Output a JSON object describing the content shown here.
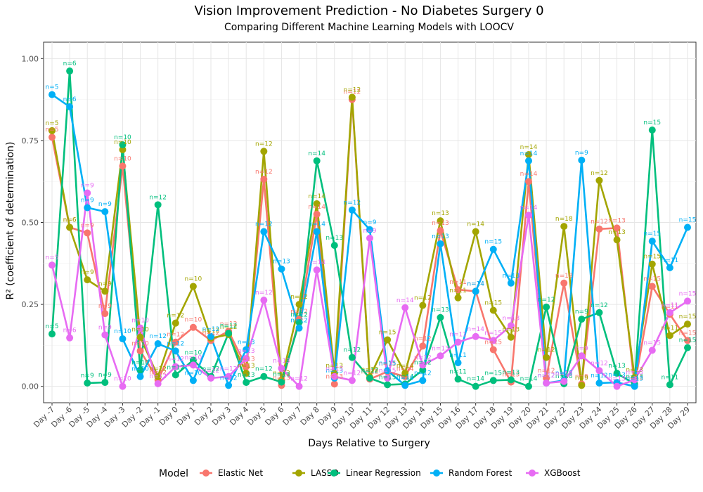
{
  "chart_data": {
    "type": "line",
    "title": "Vision Improvement Prediction - No Diabetes Surgery 0",
    "subtitle": "Comparing Different Machine Learning Models with LOOCV",
    "xlabel": "Days Relative to Surgery",
    "ylabel": "R² (coefficient of determination)",
    "ylim": [
      -0.05,
      1.05
    ],
    "yticks": [
      0.0,
      0.25,
      0.5,
      0.75,
      1.0
    ],
    "ytick_labels": [
      "0.00",
      "0.25",
      "0.50",
      "0.75",
      "1.00"
    ],
    "categories": [
      "Day -7",
      "Day -6",
      "Day -5",
      "Day -4",
      "Day -3",
      "Day -2",
      "Day -1",
      "Day 0",
      "Day 1",
      "Day 2",
      "Day 3",
      "Day 4",
      "Day 5",
      "Day 6",
      "Day 7",
      "Day 8",
      "Day 9",
      "Day 10",
      "Day 11",
      "Day 12",
      "Day 13",
      "Day 14",
      "Day 15",
      "Day 16",
      "Day 17",
      "Day 18",
      "Day 19",
      "Day 20",
      "Day 21",
      "Day 22",
      "Day 23",
      "Day 24",
      "Day 25",
      "Day 26",
      "Day 27",
      "Day 28",
      "Day 29"
    ],
    "grid": true,
    "legend_title": "Model",
    "legend_position": "bottom",
    "series": [
      {
        "name": "Elastic Net",
        "color": "#F8766D",
        "values": [
          0.76,
          0.485,
          0.468,
          0.222,
          0.672,
          0.108,
          0.02,
          0.135,
          0.18,
          0.14,
          0.168,
          0.06,
          0.632,
          0.003,
          0.205,
          0.525,
          0.007,
          0.875,
          0.022,
          0.045,
          0.03,
          0.123,
          0.475,
          0.295,
          0.29,
          0.112,
          0.013,
          0.625,
          0.025,
          0.315,
          0.007,
          0.48,
          0.483,
          0.003,
          0.305,
          0.22,
          0.14
        ],
        "labels": [
          "n=5",
          "n=6",
          "n=9",
          "n=9",
          "n=10",
          "n=10",
          "n=12",
          "n=12",
          "n=10",
          "n=12",
          "n=12",
          "n=13",
          "n=12",
          "n=13",
          "n=12",
          "n=14",
          "n=13",
          "n=12",
          "n=12",
          "n=15",
          "n=14",
          "n=12",
          "n=13",
          "n=11",
          "n=14",
          "n=15",
          "n=13",
          "n=14",
          "n=12",
          "n=18",
          "n=9",
          "n=12",
          "n=13",
          "n=13",
          "n=15",
          "n=11",
          "n=15"
        ]
      },
      {
        "name": "LASSO",
        "color": "#A3A500",
        "values": [
          0.78,
          0.485,
          0.325,
          0.29,
          0.722,
          0.15,
          0.03,
          0.193,
          0.305,
          0.147,
          0.158,
          0.04,
          0.717,
          0.018,
          0.25,
          0.557,
          0.04,
          0.882,
          0.028,
          0.142,
          0.04,
          0.247,
          0.505,
          0.27,
          0.472,
          0.232,
          0.15,
          0.707,
          0.088,
          0.488,
          0.003,
          0.628,
          0.447,
          0.027,
          0.373,
          0.155,
          0.19
        ],
        "labels": [
          "n=5",
          "n=6",
          "n=9",
          "n=9",
          "n=10",
          "n=10",
          "n=12",
          "n=12",
          "n=10",
          "n=12",
          "n=12",
          "n=13",
          "n=12",
          "n=13",
          "n=12",
          "n=14",
          "n=13",
          "n=12",
          "n=12",
          "n=15",
          "n=14",
          "n=12",
          "n=13",
          "n=11",
          "n=14",
          "n=15",
          "n=13",
          "n=14",
          "n=12",
          "n=18",
          "n=9",
          "n=12",
          "n=13",
          "n=13",
          "n=15",
          "n=11",
          "n=15"
        ]
      },
      {
        "name": "Linear Regression",
        "color": "#00BF7D",
        "values": [
          0.16,
          0.962,
          0.01,
          0.012,
          0.737,
          0.05,
          0.554,
          0.035,
          0.08,
          0.03,
          0.162,
          0.012,
          0.03,
          0.013,
          0.195,
          0.688,
          0.43,
          0.088,
          0.025,
          0.005,
          0.007,
          0.05,
          0.21,
          0.022,
          0.0,
          0.018,
          0.02,
          0.0,
          0.242,
          0.008,
          0.205,
          0.225,
          0.04,
          0.007,
          0.782,
          0.005,
          0.118
        ],
        "labels": [
          "n=5",
          "n=6",
          "n=9",
          "n=9",
          "n=10",
          "n=10",
          "n=12",
          "n=12",
          "n=10",
          "n=12",
          "n=12",
          "n=13",
          "n=12",
          "n=13",
          "n=12",
          "n=14",
          "n=13",
          "n=12",
          "n=12",
          "n=15",
          "n=14",
          "n=12",
          "n=13",
          "n=11",
          "n=14",
          "n=15",
          "n=13",
          "n=14",
          "n=12",
          "n=18",
          "n=9",
          "n=12",
          "n=13",
          "n=13",
          "n=15",
          "n=11",
          "n=15"
        ]
      },
      {
        "name": "Random Forest",
        "color": "#00B0F6",
        "values": [
          0.89,
          0.853,
          0.545,
          0.533,
          0.145,
          0.03,
          0.13,
          0.108,
          0.018,
          0.152,
          0.003,
          0.112,
          0.472,
          0.358,
          0.178,
          0.472,
          0.025,
          0.538,
          0.478,
          0.048,
          0.003,
          0.018,
          0.435,
          0.072,
          0.29,
          0.418,
          0.315,
          0.688,
          0.01,
          0.018,
          0.69,
          0.01,
          0.012,
          0.0,
          0.443,
          0.362,
          0.485
        ],
        "labels": [
          "n=5",
          "n=6",
          "n=9",
          "n=9",
          "n=10",
          "n=10",
          "n=12",
          "n=12",
          "n=10",
          "n=12",
          "n=12",
          "n=13",
          "n=12",
          "n=13",
          "n=12",
          "n=14",
          "n=13",
          "n=12",
          "n=9",
          "n=15",
          "n=14",
          "n=12",
          "n=13",
          "n=11",
          "n=14",
          "n=15",
          "n=13",
          "n=14",
          "n=12",
          "n=18",
          "n=9",
          "n=12",
          "n=13",
          "n=13",
          "n=15",
          "n=11",
          "n=15"
        ]
      },
      {
        "name": "XGBoost",
        "color": "#E76BF3",
        "values": [
          0.37,
          0.148,
          0.59,
          0.157,
          0.0,
          0.178,
          0.008,
          0.06,
          0.065,
          0.025,
          0.03,
          0.085,
          0.263,
          0.055,
          0.0,
          0.355,
          0.03,
          0.018,
          0.452,
          0.025,
          0.24,
          0.065,
          0.093,
          0.135,
          0.152,
          0.14,
          0.185,
          0.522,
          0.01,
          0.015,
          0.093,
          0.048,
          0.0,
          0.02,
          0.11,
          0.225,
          0.26
        ],
        "labels": [
          "n=5",
          "n=6",
          "n=9",
          "n=9",
          "n=10",
          "n=10",
          "n=12",
          "n=12",
          "n=10",
          "n=12",
          "n=12",
          "n=13",
          "n=12",
          "n=13",
          "n=12",
          "n=14",
          "n=13",
          "n=12",
          "n=9",
          "n=15",
          "n=14",
          "n=12",
          "n=13",
          "n=11",
          "n=14",
          "n=15",
          "n=13",
          "n=14",
          "n=12",
          "n=18",
          "n=9",
          "n=12",
          "n=13",
          "n=13",
          "n=15",
          "n=11",
          "n=15"
        ]
      }
    ]
  }
}
